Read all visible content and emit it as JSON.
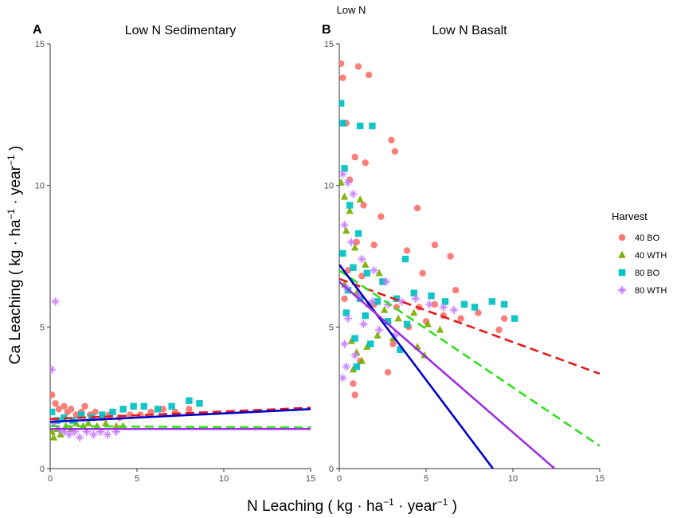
{
  "figure": {
    "main_title": "Low N",
    "x_axis_title_main": "N Leaching ( kg · ha",
    "x_axis_title_tail": " · year",
    "y_axis_title_main": "Ca Leaching ( kg · ha",
    "y_axis_title_tail": " · year",
    "unit_superscript": "−1",
    "unit_close": " )"
  },
  "legend": {
    "title": "Harvest",
    "items": [
      {
        "label": "40 BO",
        "color": "#F8766D",
        "shape": "circle"
      },
      {
        "label": "40 WTH",
        "color": "#7CAE00",
        "shape": "triangle"
      },
      {
        "label": "80 BO",
        "color": "#00BFC4",
        "shape": "square"
      },
      {
        "label": "80 WTH",
        "color": "#C77CFF",
        "shape": "star"
      }
    ]
  },
  "chart_data": [
    {
      "type": "scatter",
      "panel_tag": "A",
      "title": "Low N Sedimentary",
      "xlim": [
        0,
        15
      ],
      "ylim": [
        0,
        15
      ],
      "x_ticks": [
        0,
        5,
        10,
        15
      ],
      "y_ticks": [
        0,
        5,
        10,
        15
      ],
      "series": [
        {
          "name": "40 BO",
          "points": [
            [
              0.1,
              2.6
            ],
            [
              0.3,
              2.3
            ],
            [
              0.5,
              2.1
            ],
            [
              0.8,
              2.2
            ],
            [
              1.0,
              2.0
            ],
            [
              1.2,
              2.1
            ],
            [
              1.5,
              1.9
            ],
            [
              1.8,
              2.0
            ],
            [
              2.0,
              2.2
            ],
            [
              2.3,
              1.9
            ],
            [
              2.6,
              2.0
            ],
            [
              3.0,
              1.8
            ],
            [
              3.4,
              1.9
            ],
            [
              4.0,
              1.8
            ],
            [
              4.6,
              1.9
            ],
            [
              5.2,
              1.9
            ],
            [
              5.8,
              2.0
            ],
            [
              6.5,
              2.1
            ],
            [
              7.2,
              2.0
            ],
            [
              8.0,
              2.1
            ]
          ]
        },
        {
          "name": "40 WTH",
          "points": [
            [
              0.1,
              1.3
            ],
            [
              0.2,
              1.1
            ],
            [
              0.4,
              1.4
            ],
            [
              0.6,
              1.2
            ],
            [
              0.9,
              1.5
            ],
            [
              1.2,
              1.4
            ],
            [
              1.5,
              1.6
            ],
            [
              1.9,
              1.5
            ],
            [
              2.2,
              1.6
            ],
            [
              2.7,
              1.5
            ],
            [
              3.2,
              1.6
            ],
            [
              3.8,
              1.5
            ],
            [
              4.2,
              1.5
            ]
          ]
        },
        {
          "name": "80 BO",
          "points": [
            [
              0.1,
              2.0
            ],
            [
              0.4,
              1.7
            ],
            [
              0.8,
              1.8
            ],
            [
              1.3,
              1.7
            ],
            [
              1.8,
              1.9
            ],
            [
              2.4,
              1.8
            ],
            [
              3.0,
              1.9
            ],
            [
              3.6,
              2.0
            ],
            [
              4.2,
              2.1
            ],
            [
              4.8,
              2.2
            ],
            [
              5.4,
              2.2
            ],
            [
              6.2,
              2.1
            ],
            [
              7.0,
              2.2
            ],
            [
              8.0,
              2.4
            ],
            [
              8.6,
              2.3
            ]
          ]
        },
        {
          "name": "80 WTH",
          "points": [
            [
              0.1,
              3.5
            ],
            [
              0.3,
              5.9
            ],
            [
              0.2,
              1.6
            ],
            [
              0.5,
              1.4
            ],
            [
              0.8,
              1.3
            ],
            [
              1.1,
              1.2
            ],
            [
              1.4,
              1.3
            ],
            [
              1.7,
              1.1
            ],
            [
              2.1,
              1.3
            ],
            [
              2.5,
              1.2
            ],
            [
              2.9,
              1.3
            ],
            [
              3.3,
              1.2
            ],
            [
              3.8,
              1.3
            ]
          ]
        }
      ],
      "trend_lines": [
        {
          "name": "40 BO",
          "from": [
            0,
            1.75
          ],
          "to": [
            15,
            2.15
          ],
          "color": "#E31A1C",
          "dash": "dashed"
        },
        {
          "name": "40 WTH",
          "from": [
            0,
            1.5
          ],
          "to": [
            15,
            1.45
          ],
          "color": "#33E020",
          "dash": "dashed"
        },
        {
          "name": "80 BO",
          "from": [
            0,
            1.65
          ],
          "to": [
            15,
            2.1
          ],
          "color": "#0000CC",
          "dash": "solid"
        },
        {
          "name": "80 WTH",
          "from": [
            0,
            1.4
          ],
          "to": [
            15,
            1.4
          ],
          "color": "#9B30E0",
          "dash": "solid"
        }
      ]
    },
    {
      "type": "scatter",
      "panel_tag": "B",
      "title": "Low N Basalt",
      "xlim": [
        0,
        15
      ],
      "ylim": [
        0,
        15
      ],
      "x_ticks": [
        0,
        5,
        10,
        15
      ],
      "y_ticks": [
        0,
        5,
        10,
        15
      ],
      "series": [
        {
          "name": "40 BO",
          "points": [
            [
              0.1,
              14.3
            ],
            [
              0.2,
              13.8
            ],
            [
              1.1,
              14.2
            ],
            [
              1.7,
              13.9
            ],
            [
              0.4,
              12.2
            ],
            [
              0.9,
              11.0
            ],
            [
              1.5,
              10.8
            ],
            [
              3.0,
              11.6
            ],
            [
              3.2,
              11.2
            ],
            [
              0.6,
              10.2
            ],
            [
              1.4,
              9.3
            ],
            [
              2.4,
              8.9
            ],
            [
              4.5,
              9.2
            ],
            [
              1.0,
              8.0
            ],
            [
              2.0,
              7.9
            ],
            [
              3.9,
              7.7
            ],
            [
              5.5,
              7.9
            ],
            [
              6.4,
              7.5
            ],
            [
              0.5,
              7.0
            ],
            [
              1.3,
              6.8
            ],
            [
              2.5,
              6.6
            ],
            [
              4.8,
              6.9
            ],
            [
              6.7,
              6.3
            ],
            [
              0.3,
              6.0
            ],
            [
              2.0,
              5.8
            ],
            [
              3.3,
              5.7
            ],
            [
              4.6,
              5.7
            ],
            [
              5.5,
              5.8
            ],
            [
              6.0,
              5.4
            ],
            [
              7.0,
              5.3
            ],
            [
              8.0,
              5.5
            ],
            [
              9.5,
              5.3
            ],
            [
              9.2,
              4.9
            ],
            [
              0.8,
              3.0
            ],
            [
              0.9,
              2.6
            ],
            [
              1.2,
              3.8
            ],
            [
              2.8,
              3.4
            ],
            [
              3.1,
              4.4
            ],
            [
              4.0,
              5.0
            ],
            [
              5.0,
              5.2
            ]
          ]
        },
        {
          "name": "40 WTH",
          "points": [
            [
              0.1,
              10.1
            ],
            [
              0.3,
              9.6
            ],
            [
              0.6,
              9.1
            ],
            [
              1.2,
              9.5
            ],
            [
              0.4,
              8.4
            ],
            [
              0.9,
              7.8
            ],
            [
              1.5,
              7.2
            ],
            [
              2.3,
              6.9
            ],
            [
              0.3,
              6.5
            ],
            [
              1.0,
              6.2
            ],
            [
              1.7,
              5.8
            ],
            [
              2.6,
              5.6
            ],
            [
              3.4,
              5.3
            ],
            [
              4.3,
              5.5
            ],
            [
              5.1,
              5.1
            ],
            [
              5.8,
              4.9
            ],
            [
              0.7,
              4.5
            ],
            [
              1.0,
              4.1
            ],
            [
              1.3,
              3.8
            ],
            [
              0.8,
              3.5
            ],
            [
              1.6,
              4.3
            ],
            [
              2.2,
              4.7
            ],
            [
              3.1,
              4.6
            ],
            [
              4.5,
              4.3
            ],
            [
              4.9,
              4.0
            ]
          ]
        },
        {
          "name": "80 BO",
          "points": [
            [
              0.1,
              12.9
            ],
            [
              0.2,
              12.2
            ],
            [
              1.2,
              12.1
            ],
            [
              1.9,
              12.1
            ],
            [
              0.3,
              10.6
            ],
            [
              0.6,
              9.3
            ],
            [
              1.1,
              8.3
            ],
            [
              0.2,
              7.6
            ],
            [
              0.8,
              7.1
            ],
            [
              1.6,
              6.9
            ],
            [
              2.5,
              6.6
            ],
            [
              3.8,
              7.4
            ],
            [
              0.5,
              6.3
            ],
            [
              1.2,
              6.0
            ],
            [
              2.2,
              5.9
            ],
            [
              3.3,
              6.0
            ],
            [
              4.3,
              6.2
            ],
            [
              5.3,
              6.1
            ],
            [
              6.1,
              5.9
            ],
            [
              7.2,
              5.8
            ],
            [
              7.8,
              5.7
            ],
            [
              8.8,
              5.9
            ],
            [
              9.5,
              5.8
            ],
            [
              10.1,
              5.3
            ],
            [
              0.4,
              5.5
            ],
            [
              1.5,
              5.4
            ],
            [
              2.8,
              5.2
            ],
            [
              3.9,
              5.1
            ],
            [
              0.9,
              4.6
            ],
            [
              1.8,
              4.4
            ],
            [
              3.5,
              4.2
            ],
            [
              1.0,
              3.6
            ]
          ]
        },
        {
          "name": "80 WTH",
          "points": [
            [
              0.2,
              10.4
            ],
            [
              0.5,
              10.1
            ],
            [
              0.8,
              9.7
            ],
            [
              0.3,
              8.6
            ],
            [
              0.7,
              8.0
            ],
            [
              1.3,
              7.4
            ],
            [
              2.0,
              7.0
            ],
            [
              2.7,
              6.6
            ],
            [
              0.4,
              6.4
            ],
            [
              1.1,
              6.1
            ],
            [
              1.9,
              5.9
            ],
            [
              2.8,
              5.8
            ],
            [
              3.6,
              5.9
            ],
            [
              4.4,
              6.0
            ],
            [
              5.2,
              5.8
            ],
            [
              6.0,
              5.7
            ],
            [
              6.6,
              5.6
            ],
            [
              0.5,
              5.3
            ],
            [
              1.4,
              5.1
            ],
            [
              2.3,
              4.9
            ],
            [
              3.2,
              4.7
            ],
            [
              0.3,
              4.4
            ],
            [
              0.9,
              4.0
            ],
            [
              0.4,
              3.6
            ],
            [
              0.2,
              3.2
            ]
          ]
        }
      ],
      "trend_lines": [
        {
          "name": "40 BO",
          "from": [
            0,
            6.7
          ],
          "to": [
            15,
            3.35
          ],
          "color": "#E31A1C",
          "dash": "dashed"
        },
        {
          "name": "40 WTH",
          "from": [
            0,
            7.0
          ],
          "to": [
            15,
            0.8
          ],
          "color": "#33E020",
          "dash": "dashed"
        },
        {
          "name": "80 BO",
          "from": [
            0,
            7.2
          ],
          "to": [
            8.85,
            0
          ],
          "color": "#0000CC",
          "dash": "solid"
        },
        {
          "name": "80 WTH",
          "from": [
            0,
            6.6
          ],
          "to": [
            12.4,
            0
          ],
          "color": "#9B30E0",
          "dash": "solid"
        }
      ]
    }
  ]
}
